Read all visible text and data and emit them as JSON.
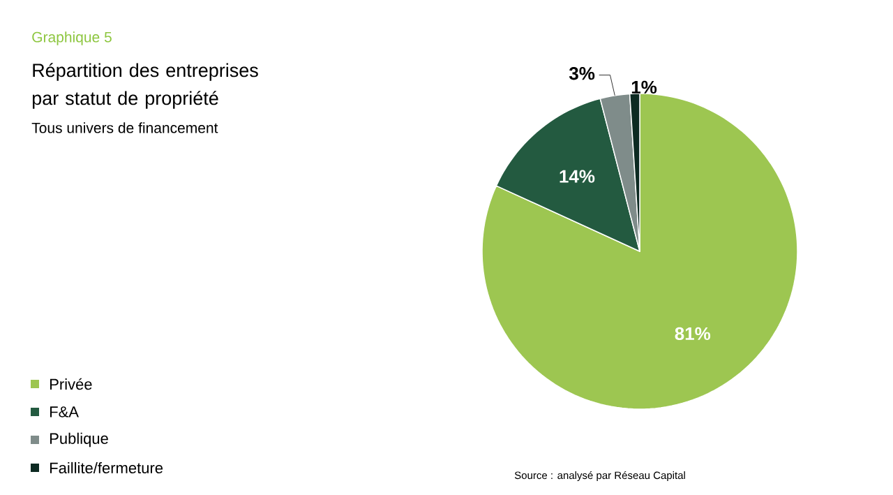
{
  "chart_data": {
    "type": "pie",
    "title": "Répartition des entreprises par statut de propriété",
    "subtitle": "Tous univers de financement",
    "annotations": [
      "Graphique 5",
      "Source : analysé par Réseau Capital"
    ],
    "categories": [
      "Privée",
      "F&A",
      "Publique",
      "Faillite/fermeture"
    ],
    "values": [
      81,
      14,
      3,
      1
    ],
    "value_labels": [
      "81%",
      "14%",
      "3%",
      "1%"
    ],
    "colors": [
      "#9dc651",
      "#235a40",
      "#7f8c8a",
      "#0d2a22"
    ],
    "legend": "bottom left"
  }
}
